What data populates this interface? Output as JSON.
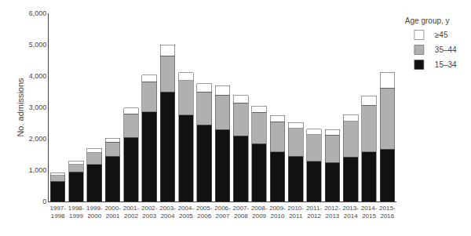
{
  "chart_data": {
    "type": "bar",
    "stacked": true,
    "categories": [
      "1997-\n1998",
      "1998-\n1999",
      "1999-\n2000",
      "2000-\n2001",
      "2001-\n2002",
      "2002-\n2003",
      "2003-\n2004",
      "2004-\n2005",
      "2005-\n2006",
      "2006-\n2007",
      "2007-\n2008",
      "2008-\n2009",
      "2009-\n2010",
      "2010-\n2011",
      "2011-\n2012",
      "2012-\n2013",
      "2013-\n2014",
      "2014-\n2015",
      "2015-\n2016"
    ],
    "series": [
      {
        "name": "15–34",
        "color": "#111111",
        "values": [
          650,
          950,
          1180,
          1440,
          2050,
          2860,
          3500,
          2760,
          2440,
          2300,
          2090,
          1840,
          1580,
          1440,
          1280,
          1250,
          1420,
          1580,
          1670
        ]
      },
      {
        "name": "35–44",
        "color": "#b0b0b0",
        "values": [
          180,
          235,
          380,
          450,
          740,
          960,
          1150,
          1100,
          1060,
          1100,
          1050,
          1010,
          970,
          890,
          850,
          870,
          1140,
          1490,
          1950
        ]
      },
      {
        "name": "≥45",
        "color": "#ffffff",
        "values": [
          80,
          110,
          130,
          130,
          190,
          210,
          340,
          250,
          255,
          290,
          240,
          190,
          195,
          195,
          175,
          175,
          215,
          295,
          490
        ]
      }
    ],
    "ylabel": "No. admissions",
    "ylim": [
      0,
      6000
    ],
    "yticks": [
      0,
      {
        "value": 1000,
        "label": "1,000"
      },
      {
        "value": 2000,
        "label": "2,000"
      },
      {
        "value": 3000,
        "label": "3,000"
      },
      {
        "value": 4000,
        "label": "4,000"
      },
      {
        "value": 5000,
        "label": "5,000"
      },
      {
        "value": 6000,
        "label": "6,000"
      }
    ],
    "legend_title": "Age group, y",
    "legend": "upper right",
    "grid": false
  }
}
